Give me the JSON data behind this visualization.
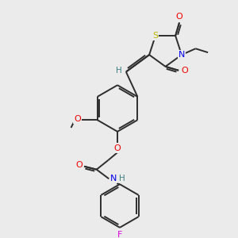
{
  "bg_color": "#ebebeb",
  "bond_color": "#2d2d2d",
  "atom_colors": {
    "S": "#b8b800",
    "N": "#0000ee",
    "O": "#ee0000",
    "F": "#dd00dd",
    "H": "#408080",
    "C": "#2d2d2d"
  },
  "lw": 1.4,
  "fs": 7.5
}
